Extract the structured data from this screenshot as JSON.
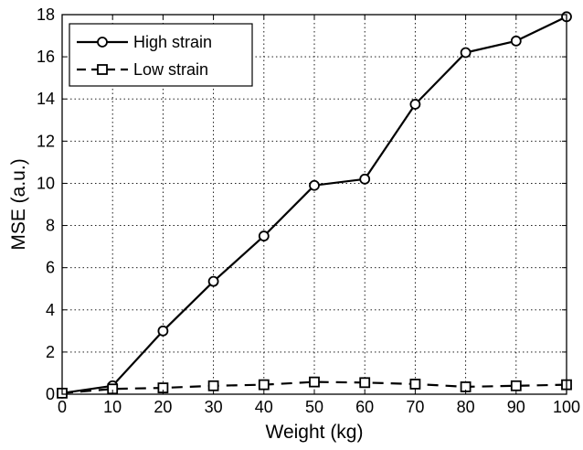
{
  "chart_data": {
    "type": "line",
    "xlabel": "Weight (kg)",
    "ylabel": "MSE (a.u.)",
    "xlim": [
      0,
      100
    ],
    "ylim": [
      0,
      18
    ],
    "xticks": [
      0,
      10,
      20,
      30,
      40,
      50,
      60,
      70,
      80,
      90,
      100
    ],
    "yticks": [
      0,
      2,
      4,
      6,
      8,
      10,
      12,
      14,
      16,
      18
    ],
    "x": [
      0,
      10,
      20,
      30,
      40,
      50,
      60,
      70,
      80,
      90,
      100
    ],
    "grid": true,
    "legend_position": "top-left",
    "series": [
      {
        "name": "High strain",
        "marker": "circle",
        "line_style": "solid",
        "color": "#000000",
        "values": [
          0.05,
          0.4,
          3.0,
          5.35,
          7.5,
          9.9,
          10.2,
          13.75,
          16.2,
          16.75,
          17.9
        ]
      },
      {
        "name": "Low strain",
        "marker": "square",
        "line_style": "dashed",
        "color": "#000000",
        "values": [
          0.05,
          0.25,
          0.3,
          0.4,
          0.45,
          0.58,
          0.55,
          0.48,
          0.35,
          0.4,
          0.45
        ]
      }
    ]
  }
}
